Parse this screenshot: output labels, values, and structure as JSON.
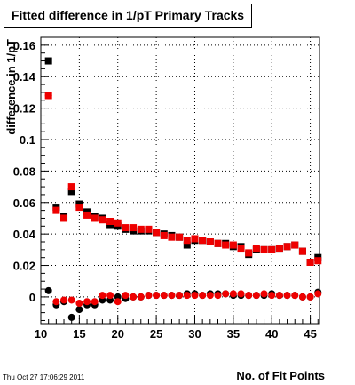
{
  "header": {
    "title": "Fitted difference in 1/pT Primary Tracks",
    "timestamp": "Thu Oct 27 17:06:29 2011"
  },
  "chart_data": {
    "type": "scatter",
    "title": "Fitted difference in 1/pT Primary Tracks",
    "xlabel": "No. of Fit Points",
    "ylabel": "difference in 1/pT",
    "xlim": [
      10,
      46.2
    ],
    "ylim": [
      -0.017,
      0.165
    ],
    "x_ticks": [
      10,
      15,
      20,
      25,
      30,
      35,
      40,
      45
    ],
    "x_tick_labels": [
      "10",
      "15",
      "20",
      "25",
      "30",
      "35",
      "40",
      "45"
    ],
    "y_ticks": [
      0,
      0.02,
      0.04,
      0.06,
      0.08,
      0.1,
      0.12,
      0.14,
      0.16
    ],
    "y_tick_labels": [
      "0",
      "0.02",
      "0.04",
      "0.06",
      "0.08",
      "0.1",
      "0.12",
      "0.14",
      "0.16"
    ],
    "grid": true,
    "series": [
      {
        "marker": "square",
        "color": "#000000",
        "x": [
          11,
          12,
          13,
          14,
          15,
          16,
          17,
          18,
          19,
          20,
          21,
          22,
          23,
          24,
          25,
          26,
          27,
          28,
          29,
          30,
          31,
          32,
          33,
          34,
          35,
          36,
          37,
          38,
          39,
          40,
          41,
          42,
          43,
          44,
          45,
          46
        ],
        "y": [
          0.15,
          0.057,
          0.051,
          0.067,
          0.059,
          0.054,
          0.051,
          0.05,
          0.046,
          0.045,
          0.043,
          0.042,
          0.042,
          0.042,
          0.041,
          0.04,
          0.039,
          0.038,
          0.033,
          0.036,
          0.036,
          0.035,
          0.034,
          0.034,
          0.032,
          0.032,
          0.027,
          0.03,
          0.03,
          0.03,
          0.031,
          0.032,
          0.033,
          0.029,
          0.022,
          0.025
        ]
      },
      {
        "marker": "square",
        "color": "#ee0000",
        "x": [
          11,
          12,
          13,
          14,
          15,
          16,
          17,
          18,
          19,
          20,
          21,
          22,
          23,
          24,
          25,
          26,
          27,
          28,
          29,
          30,
          31,
          32,
          33,
          34,
          35,
          36,
          37,
          38,
          39,
          40,
          41,
          42,
          43,
          44,
          45,
          46
        ],
        "y": [
          0.128,
          0.055,
          0.05,
          0.07,
          0.057,
          0.052,
          0.05,
          0.049,
          0.048,
          0.047,
          0.044,
          0.044,
          0.043,
          0.043,
          0.041,
          0.039,
          0.038,
          0.038,
          0.036,
          0.037,
          0.036,
          0.035,
          0.034,
          0.033,
          0.033,
          0.031,
          0.028,
          0.031,
          0.03,
          0.03,
          0.031,
          0.032,
          0.033,
          0.029,
          0.022,
          0.023
        ]
      },
      {
        "marker": "circle",
        "color": "#000000",
        "x": [
          11,
          12,
          13,
          14,
          15,
          16,
          17,
          18,
          19,
          20,
          21,
          22,
          23,
          24,
          25,
          26,
          27,
          28,
          29,
          30,
          31,
          32,
          33,
          34,
          35,
          36,
          37,
          38,
          39,
          40,
          41,
          42,
          43,
          44,
          45,
          46
        ],
        "y": [
          0.004,
          -0.005,
          -0.003,
          -0.013,
          -0.008,
          -0.005,
          -0.005,
          -0.002,
          -0.002,
          0.0,
          -0.001,
          0.0,
          0.0,
          0.001,
          0.001,
          0.001,
          0.001,
          0.001,
          0.002,
          0.002,
          0.001,
          0.002,
          0.002,
          0.002,
          0.001,
          0.001,
          0.001,
          0.001,
          0.001,
          0.002,
          0.001,
          0.001,
          0.001,
          0.0,
          0.0,
          0.003
        ]
      },
      {
        "marker": "circle",
        "color": "#ee0000",
        "x": [
          11,
          12,
          13,
          14,
          15,
          16,
          17,
          18,
          19,
          20,
          21,
          22,
          23,
          24,
          25,
          26,
          27,
          28,
          29,
          30,
          31,
          32,
          33,
          34,
          35,
          36,
          37,
          38,
          39,
          40,
          41,
          42,
          43,
          44,
          45,
          46
        ],
        "y": [
          0.128,
          -0.003,
          -0.002,
          -0.002,
          -0.004,
          -0.003,
          -0.003,
          0.001,
          0.001,
          -0.003,
          0.001,
          0.0,
          0.0,
          0.001,
          0.001,
          0.001,
          0.001,
          0.001,
          0.001,
          0.001,
          0.001,
          0.001,
          0.001,
          0.002,
          0.002,
          0.002,
          0.001,
          0.001,
          0.002,
          0.001,
          0.001,
          0.001,
          0.001,
          0.0,
          0.0,
          0.002
        ]
      }
    ]
  }
}
